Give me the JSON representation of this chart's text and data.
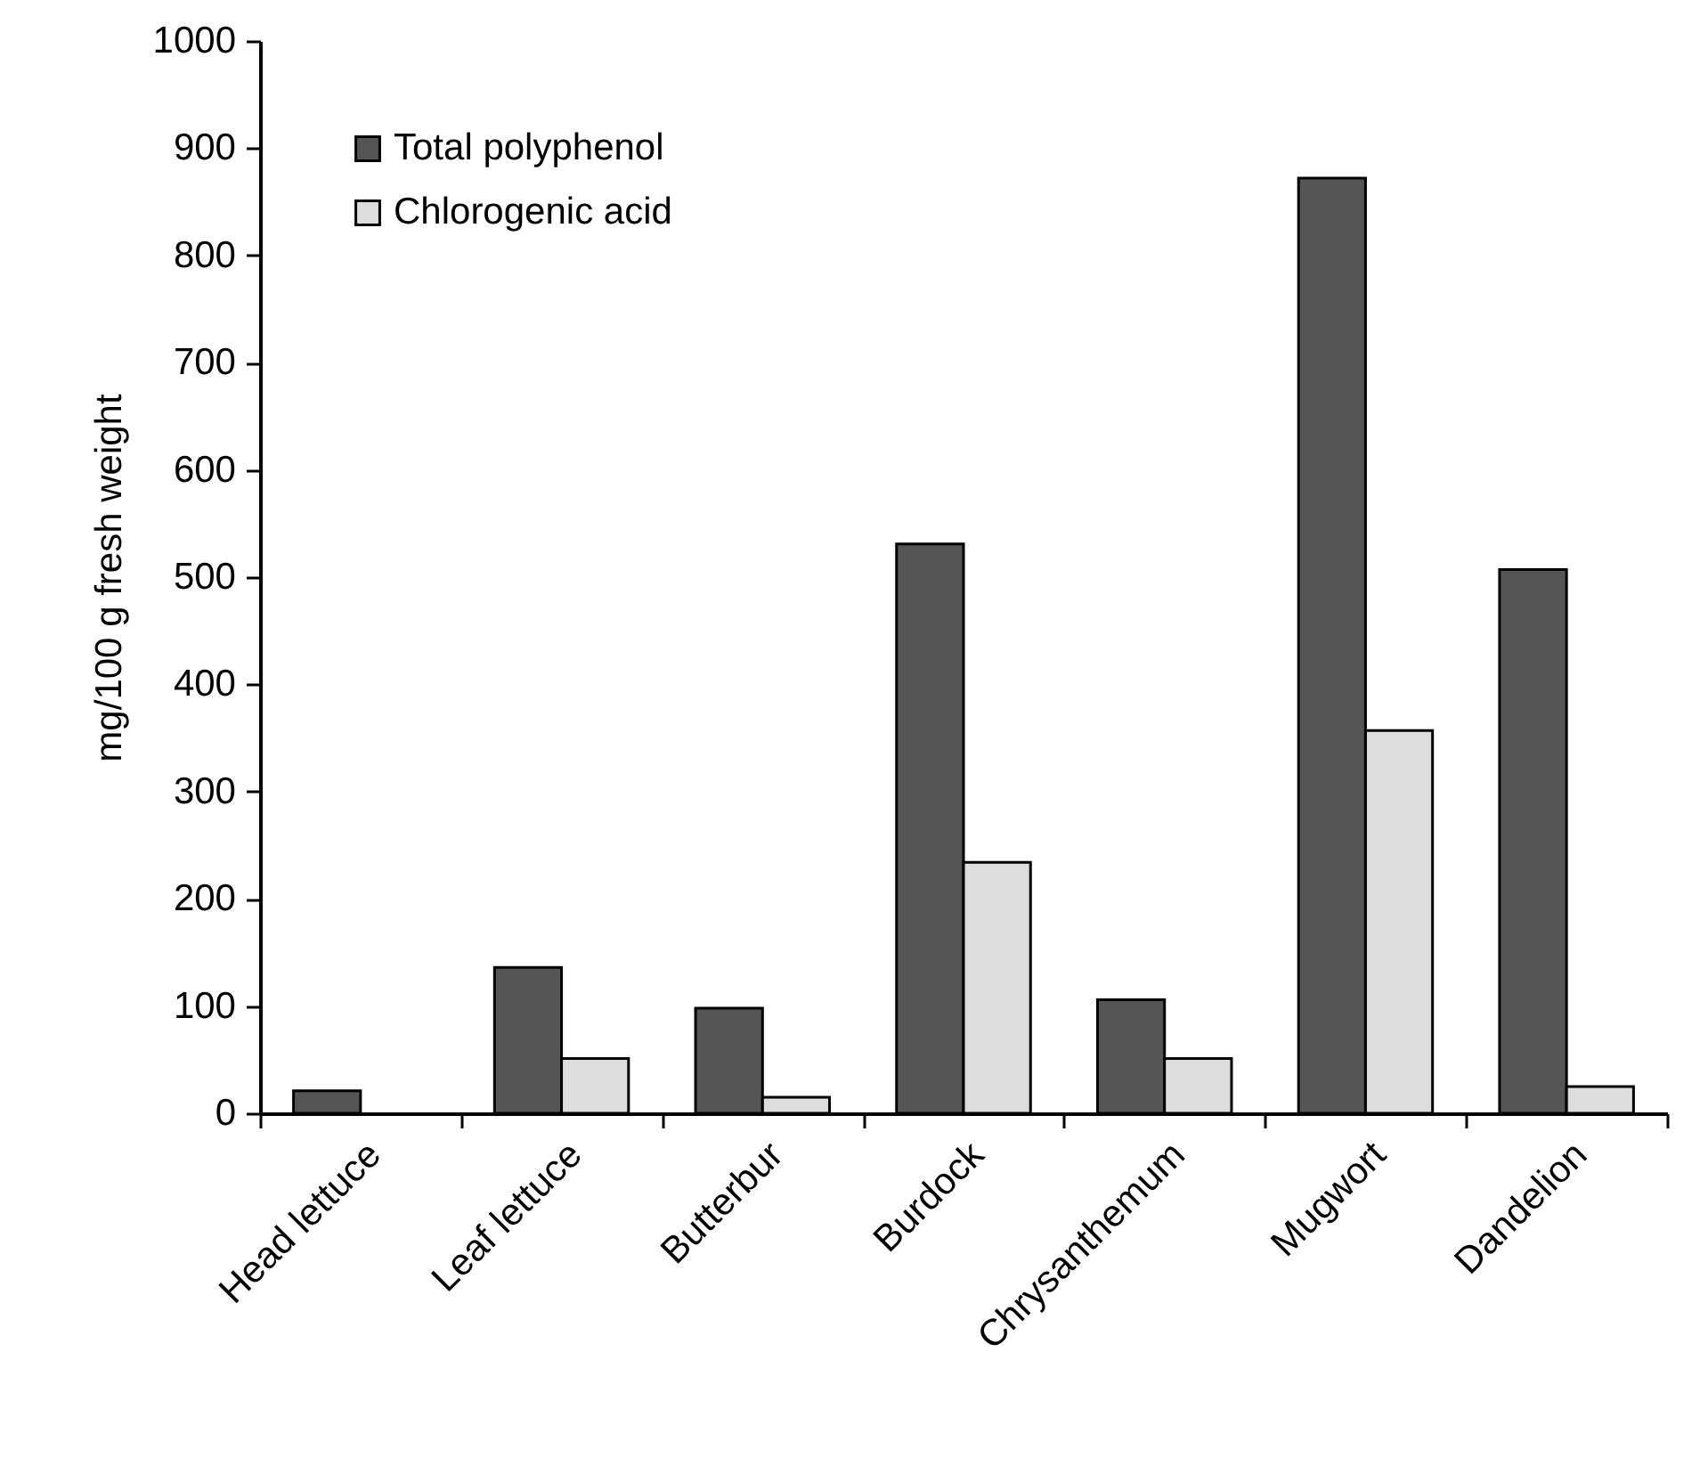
{
  "chart_data": {
    "type": "bar",
    "ylabel": "mg/100 g fresh weight",
    "categories": [
      "Head lettuce",
      "Leaf lettuce",
      "Butterbur",
      "Burdock",
      "Chrysanthemum",
      "Mugwort",
      "Dandelion"
    ],
    "series": [
      {
        "name": "Total polyphenol",
        "color": "#555555",
        "values": [
          21,
          136,
          98,
          531,
          106,
          872,
          507
        ]
      },
      {
        "name": "Chlorogenic acid",
        "color": "#dddddd",
        "values": [
          null,
          51,
          15,
          234,
          51,
          357,
          25
        ]
      }
    ],
    "ylim": [
      0,
      1000
    ],
    "yticks": [
      0,
      100,
      200,
      300,
      400,
      500,
      600,
      700,
      800,
      900,
      1000
    ],
    "grid": false,
    "legend": "top left"
  }
}
